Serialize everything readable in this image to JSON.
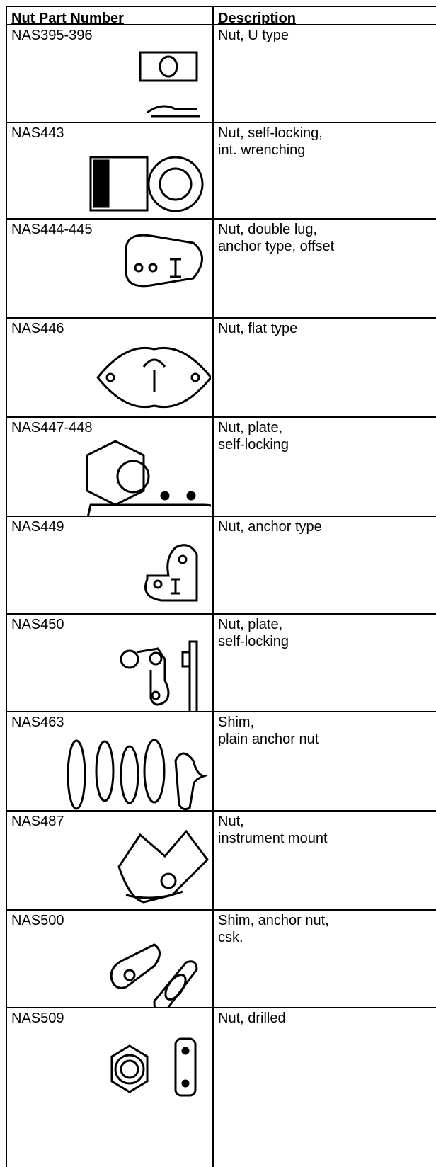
{
  "table": {
    "header": [
      "Nut Part Number",
      "Description"
    ],
    "rows": [
      [
        "NAS395-396",
        [
          "Nut, U type"
        ]
      ],
      [
        "NAS443",
        [
          "Nut, self-locking,",
          "int. wrenching"
        ]
      ],
      [
        "NAS444-445",
        [
          "Nut, double lug,",
          "anchor type, offset"
        ]
      ],
      [
        "NAS446",
        [
          "Nut, flat type"
        ]
      ],
      [
        "NAS447-448",
        [
          "Nut, plate,",
          "self-locking"
        ]
      ],
      [
        "NAS449",
        [
          "Nut, anchor type"
        ]
      ],
      [
        "NAS450",
        [
          "Nut, plate,",
          "self-locking"
        ]
      ],
      [
        "NAS463",
        [
          "Shim,",
          "plain anchor nut"
        ]
      ],
      [
        "NAS487",
        [
          "Nut,",
          "instrument mount"
        ]
      ],
      [
        "NAS500",
        [
          "Shim, anchor nut,",
          "csk."
        ]
      ],
      [
        "NAS509",
        [
          "Nut, drilled"
        ]
      ]
    ]
  }
}
